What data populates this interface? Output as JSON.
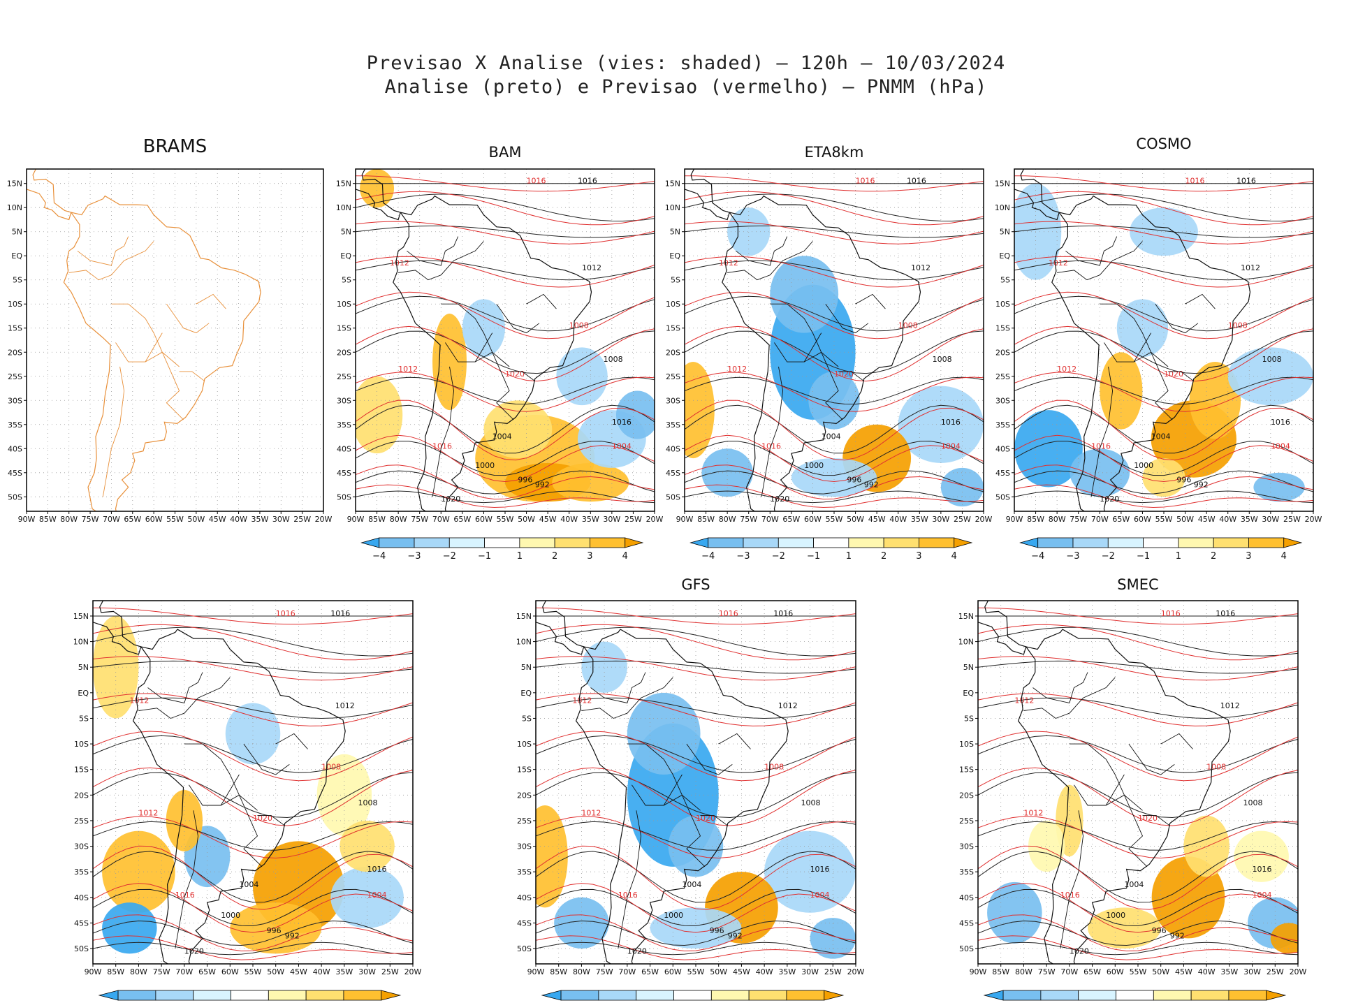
{
  "title": {
    "line1": "Previsao X Analise (vies: shaded) – 120h – 10/03/2024",
    "line2": "Analise (preto) e Previsao (vermelho) – PNMM (hPa)"
  },
  "axes": {
    "lon_labels": [
      "90W",
      "85W",
      "80W",
      "75W",
      "70W",
      "65W",
      "60W",
      "55W",
      "50W",
      "45W",
      "40W",
      "35W",
      "30W",
      "25W",
      "20W"
    ],
    "lat_labels": [
      "15N",
      "10N",
      "5N",
      "EQ",
      "5S",
      "10S",
      "15S",
      "20S",
      "25S",
      "30S",
      "35S",
      "40S",
      "45S",
      "50S"
    ]
  },
  "colorbar": {
    "ticks": [
      "−4",
      "−3",
      "−2",
      "−1",
      "1",
      "2",
      "3",
      "4"
    ],
    "colors": [
      "#38a8f0",
      "#78bff0",
      "#a8d8f8",
      "#d8f4ff",
      "#ffffff",
      "#fff8b0",
      "#ffe070",
      "#ffc030",
      "#f5a000"
    ]
  },
  "panels": [
    {
      "id": "brams",
      "title": "BRAMS",
      "has_field": false,
      "bias": null
    },
    {
      "id": "bam",
      "title": "BAM",
      "has_field": true,
      "bias": "warm-south"
    },
    {
      "id": "eta8km",
      "title": "ETA8km",
      "has_field": true,
      "bias": "cold"
    },
    {
      "id": "cosmo",
      "title": "COSMO",
      "has_field": true,
      "bias": "mixed"
    },
    {
      "id": "unnamed",
      "title": "",
      "has_field": true,
      "bias": "warm"
    },
    {
      "id": "gfs",
      "title": "GFS",
      "has_field": true,
      "bias": "cold"
    },
    {
      "id": "smec",
      "title": "SMEC",
      "has_field": true,
      "bias": "neutral"
    }
  ],
  "contour_labels": {
    "black": [
      "1016",
      "1012",
      "1008",
      "1004",
      "1000",
      "996",
      "992",
      "1020"
    ],
    "red": [
      "1016",
      "1012",
      "1008",
      "1020",
      "1004"
    ]
  },
  "colors": {
    "coast_brams": "#e8903a",
    "coast_black": "#111111",
    "contour_red": "#e03030",
    "contour_black": "#222222",
    "grid": "#9a9a9a"
  }
}
